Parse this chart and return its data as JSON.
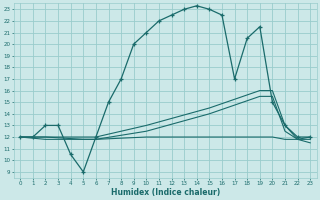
{
  "xlabel": "Humidex (Indice chaleur)",
  "bg_color": "#cce8e8",
  "grid_color": "#99cccc",
  "line_color": "#1a6b6b",
  "xlim": [
    -0.5,
    23.5
  ],
  "ylim": [
    8.5,
    23.5
  ],
  "xticks": [
    0,
    1,
    2,
    3,
    4,
    5,
    6,
    7,
    8,
    9,
    10,
    11,
    12,
    13,
    14,
    15,
    16,
    17,
    18,
    19,
    20,
    21,
    22,
    23
  ],
  "yticks": [
    9,
    10,
    11,
    12,
    13,
    14,
    15,
    16,
    17,
    18,
    19,
    20,
    21,
    22,
    23
  ],
  "curve1_x": [
    0,
    1,
    2,
    3,
    4,
    5,
    6,
    7,
    8,
    9,
    10,
    11,
    12,
    13,
    14,
    15,
    16,
    17,
    18,
    19,
    20,
    21,
    22,
    23
  ],
  "curve1_y": [
    12,
    12,
    13,
    13,
    10.5,
    9,
    12,
    15,
    17,
    20,
    21,
    22,
    22.5,
    23,
    23.3,
    23,
    22.5,
    17,
    20.5,
    21.5,
    15,
    13,
    12,
    12
  ],
  "curve2_x": [
    0,
    2,
    5,
    6,
    10,
    15,
    19,
    20,
    21,
    22,
    23
  ],
  "curve2_y": [
    12,
    12,
    12,
    12,
    13,
    14.5,
    16,
    16,
    13,
    11.8,
    12
  ],
  "curve3_x": [
    0,
    2,
    5,
    6,
    10,
    15,
    19,
    20,
    21,
    22,
    23
  ],
  "curve3_y": [
    12,
    12,
    11.8,
    11.8,
    12.5,
    14,
    15.5,
    15.5,
    12.5,
    11.8,
    11.8
  ],
  "curve4_x": [
    0,
    2,
    5,
    6,
    10,
    15,
    19,
    20,
    21,
    22,
    23
  ],
  "curve4_y": [
    12,
    11.8,
    11.8,
    11.8,
    12,
    12,
    12,
    12,
    11.8,
    11.8,
    11.5
  ]
}
